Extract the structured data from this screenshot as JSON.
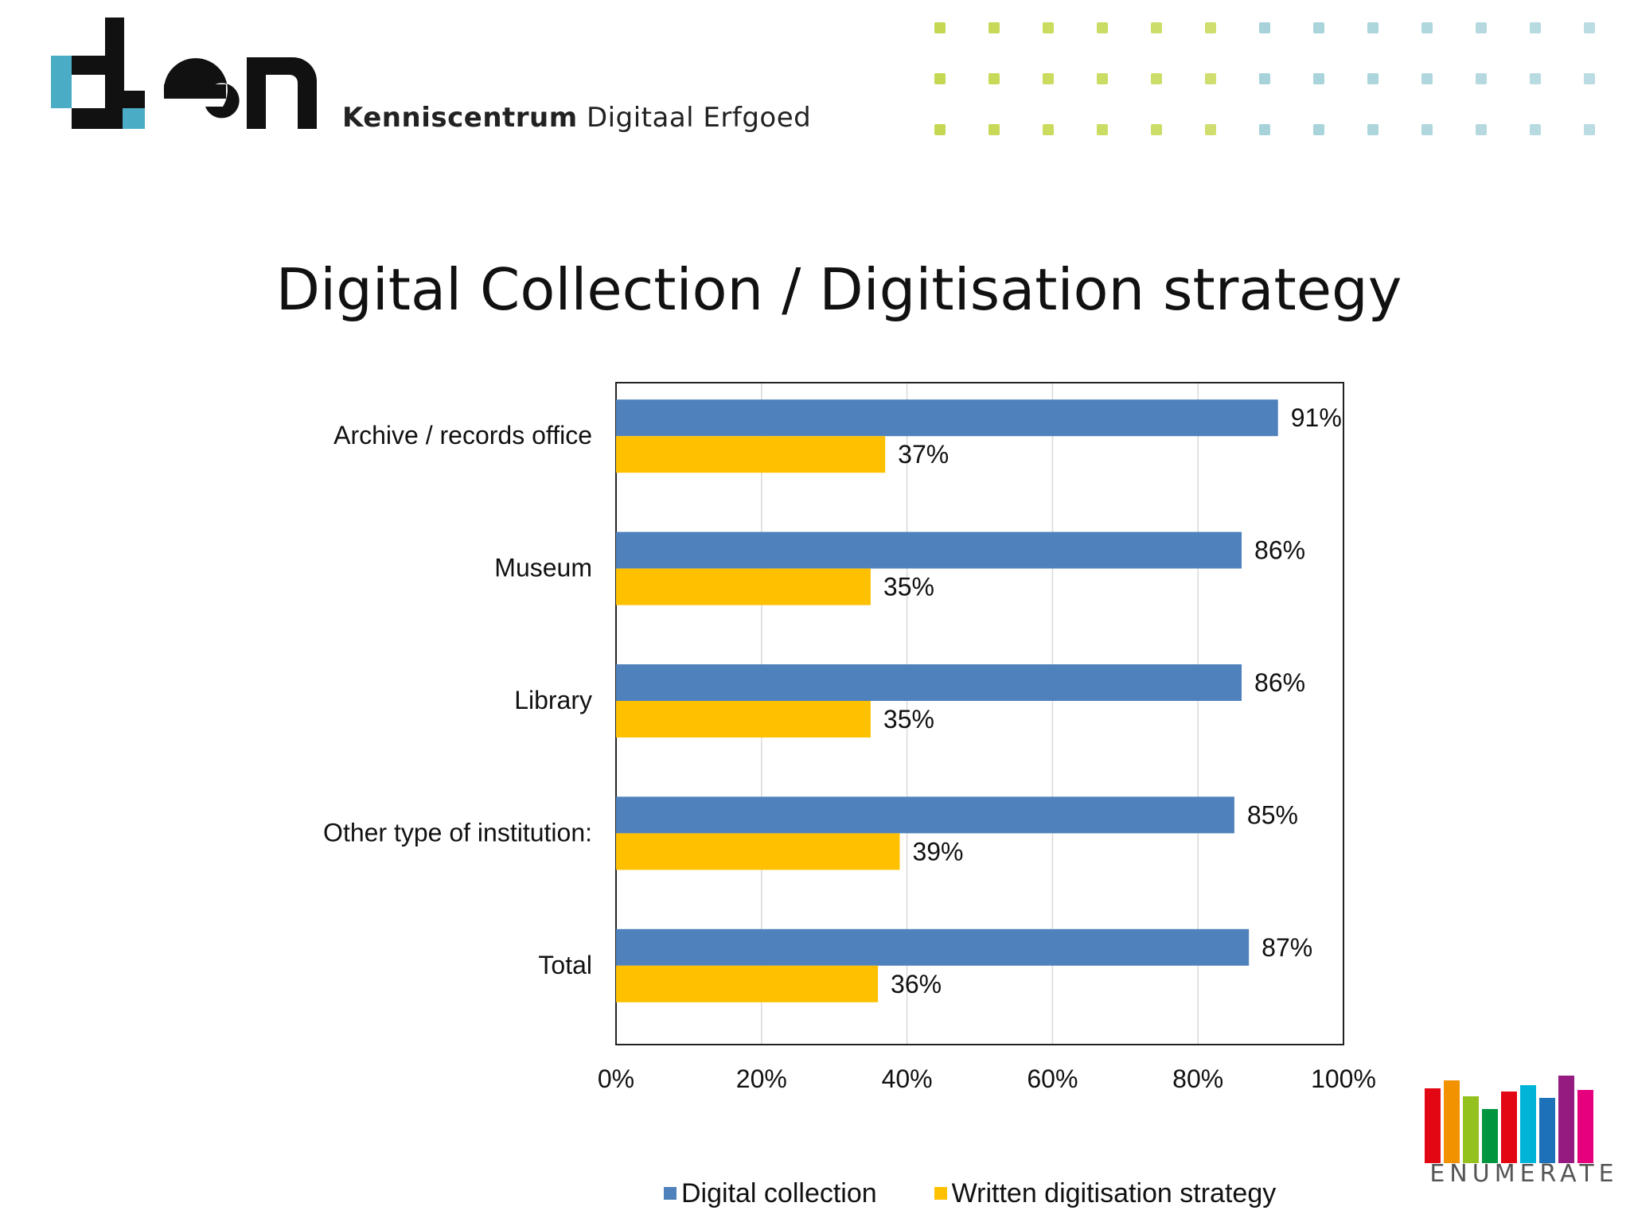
{
  "header": {
    "subtitle_bold": "Kenniscentrum",
    "subtitle_rest": "Digitaal Erfgoed"
  },
  "slide_title": "Digital Collection / Digitisation strategy",
  "footer": {
    "logo_text": "ENUMERATE"
  },
  "colors": {
    "digital": "#4f81bd",
    "strategy": "#ffc000",
    "den_blue": "#4bacc6",
    "dot_green": "#c3d64a",
    "dot_blue": "#8ec5cf"
  },
  "chart_data": {
    "type": "bar",
    "orientation": "horizontal",
    "title": "",
    "categories": [
      "Archive / records office",
      "Museum",
      "Library",
      "Other type of institution:",
      "Total"
    ],
    "series": [
      {
        "name": "Digital collection",
        "values": [
          91,
          86,
          86,
          85,
          87
        ],
        "color": "#4f81bd"
      },
      {
        "name": "Written digitisation strategy",
        "values": [
          37,
          35,
          35,
          39,
          36
        ],
        "color": "#ffc000"
      }
    ],
    "data_labels": [
      [
        "91%",
        "86%",
        "86%",
        "85%",
        "87%"
      ],
      [
        "37%",
        "35%",
        "35%",
        "39%",
        "36%"
      ]
    ],
    "xlim": [
      0,
      100
    ],
    "xticks": [
      0,
      20,
      40,
      60,
      80,
      100
    ],
    "xtick_labels": [
      "0%",
      "20%",
      "40%",
      "60%",
      "80%",
      "100%"
    ],
    "grid": true,
    "legend": "bottom"
  }
}
